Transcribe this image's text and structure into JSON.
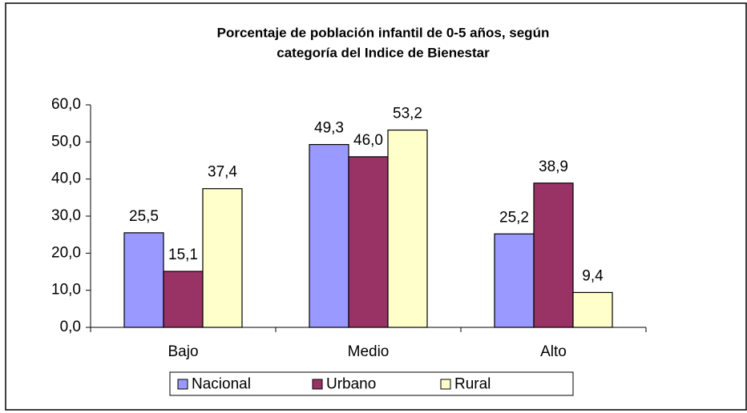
{
  "chart_data": {
    "type": "bar",
    "title": [
      "Porcentaje de población infantil de 0-5 años, según",
      "categoría del Indice de Bienestar"
    ],
    "categories": [
      "Bajo",
      "Medio",
      "Alto"
    ],
    "series": [
      {
        "name": "Nacional",
        "color": "#9999ff",
        "values": [
          25.5,
          49.3,
          25.2
        ],
        "value_labels": [
          "25,5",
          "49,3",
          "25,2"
        ]
      },
      {
        "name": "Urbano",
        "color": "#993366",
        "values": [
          15.1,
          46.0,
          38.9
        ],
        "value_labels": [
          "15,1",
          "46,0",
          "38,9"
        ]
      },
      {
        "name": "Rural",
        "color": "#ffffcc",
        "values": [
          37.4,
          53.2,
          9.4
        ],
        "value_labels": [
          "37,4",
          "53,2",
          "9,4"
        ]
      }
    ],
    "ylim": [
      0,
      60
    ],
    "yticks": [
      {
        "value": 0,
        "label": "0,0"
      },
      {
        "value": 10,
        "label": "10,0"
      },
      {
        "value": 20,
        "label": "20,0"
      },
      {
        "value": 30,
        "label": "30,0"
      },
      {
        "value": 40,
        "label": "40,0"
      },
      {
        "value": 50,
        "label": "50,0"
      },
      {
        "value": 60,
        "label": "60,0"
      }
    ],
    "legend": "bottom"
  }
}
